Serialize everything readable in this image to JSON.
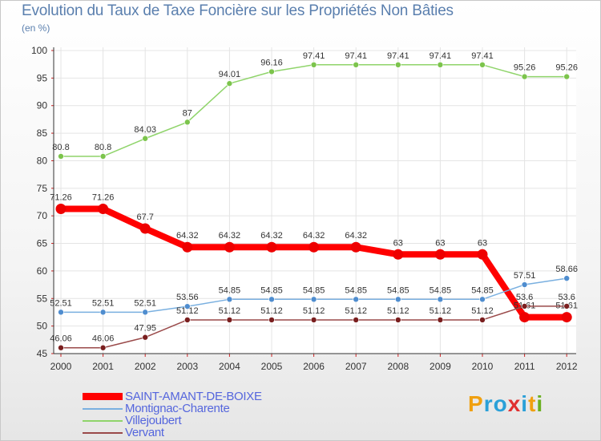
{
  "title": "Evolution du Taux de Taxe Foncière sur les Propriétés Non Bâties",
  "unit": "(en %)",
  "logo": {
    "chars": [
      "P",
      "r",
      "o",
      "x",
      "i",
      "t",
      "i"
    ],
    "colors": [
      "#f0a010",
      "#2aa0d8",
      "#2aa0d8",
      "#e03030",
      "#2aa0d8",
      "#f0a010",
      "#6ab020"
    ]
  },
  "chart_data": {
    "type": "line",
    "title": "Evolution du Taux de Taxe Foncière sur les Propriétés Non Bâties",
    "ylabel": "(en %)",
    "xlabel": "",
    "ylim": [
      45,
      100
    ],
    "yticks": [
      45,
      50,
      55,
      60,
      65,
      70,
      75,
      80,
      85,
      90,
      95,
      100
    ],
    "categories": [
      "2000",
      "2001",
      "2002",
      "2003",
      "2004",
      "2005",
      "2006",
      "2007",
      "2008",
      "2009",
      "2010",
      "2011",
      "2012"
    ],
    "series": [
      {
        "name": "Villejoubert",
        "color": "#8fd46a",
        "dot": "#7cc44c",
        "values": [
          80.8,
          80.8,
          84.03,
          87,
          94.01,
          96.16,
          97.41,
          97.41,
          97.41,
          97.41,
          97.41,
          95.26,
          95.26
        ],
        "labels": [
          "80.8",
          "80.8",
          "84.03",
          "87",
          "94.01",
          "96.16",
          "97.41",
          "97.41",
          "97.41",
          "97.41",
          "97.41",
          "95.26",
          "95.26"
        ]
      },
      {
        "name": "SAINT-AMANT-DE-BOIXE",
        "color": "#ff0000",
        "dot": "#ee0000",
        "values": [
          71.26,
          71.26,
          67.7,
          64.32,
          64.32,
          64.32,
          64.32,
          64.32,
          63,
          63,
          63,
          51.61,
          51.61
        ],
        "labels": [
          "71.26",
          "71.26",
          "67.7",
          "64.32",
          "64.32",
          "64.32",
          "64.32",
          "64.32",
          "63",
          "63",
          "63",
          "51.61",
          "51.61"
        ]
      },
      {
        "name": "Montignac-Charente",
        "color": "#7ab0e0",
        "dot": "#4f8dcf",
        "values": [
          52.51,
          52.51,
          52.51,
          53.56,
          54.85,
          54.85,
          54.85,
          54.85,
          54.85,
          54.85,
          54.85,
          57.51,
          58.66
        ],
        "labels": [
          "52.51",
          "52.51",
          "52.51",
          "53.56",
          "54.85",
          "54.85",
          "54.85",
          "54.85",
          "54.85",
          "54.85",
          "54.85",
          "57.51",
          "58.66"
        ]
      },
      {
        "name": "Vervant",
        "color": "#9a4a4a",
        "dot": "#7a1f1f",
        "values": [
          46.06,
          46.06,
          47.95,
          51.12,
          51.12,
          51.12,
          51.12,
          51.12,
          51.12,
          51.12,
          51.12,
          53.6,
          53.6
        ],
        "labels": [
          "46.06",
          "46.06",
          "47.95",
          "51.12",
          "51.12",
          "51.12",
          "51.12",
          "51.12",
          "51.12",
          "51.12",
          "51.12",
          "53.6",
          "53.6"
        ]
      }
    ],
    "legend": [
      "SAINT-AMANT-DE-BOIXE",
      "Montignac-Charente",
      "Villejoubert",
      "Vervant"
    ],
    "legend_position": "bottom-left"
  }
}
